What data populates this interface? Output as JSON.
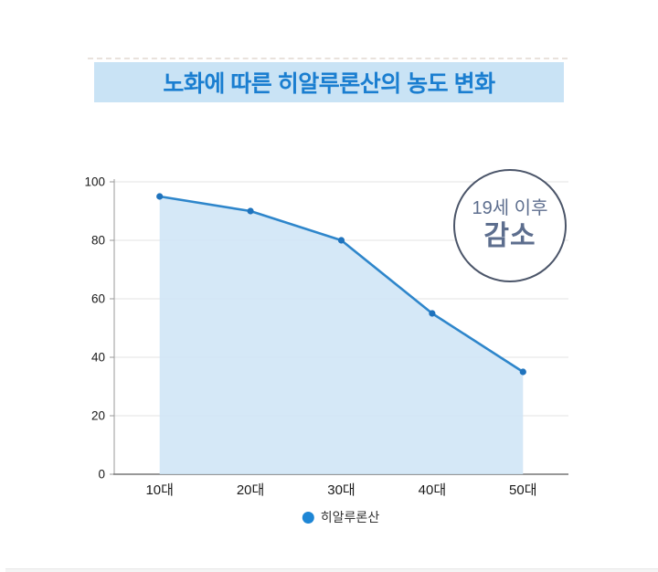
{
  "banner": {
    "title": "노화에 따른 히알루론산의 농도 변화"
  },
  "annotation": {
    "line1": "19세 이후",
    "line2": "감소"
  },
  "legend": {
    "label": "히알루론산"
  },
  "colors": {
    "accent_blue": "#1a7ed0",
    "banner_bg": "#c9e3f5",
    "line": "#2e86cb",
    "marker": "#1f73bd",
    "area_fill": "#cfe5f6",
    "legend_dot": "#1e86d5",
    "badge_border": "#4b5569",
    "badge_text": "#5d6e8e",
    "gridline": "#e3e3e3",
    "axis": "#9a9a9a"
  },
  "chart_data": {
    "type": "area",
    "title": "노화에 따른 히알루론산의 농도 변화",
    "categories": [
      "10대",
      "20대",
      "30대",
      "40대",
      "50대"
    ],
    "series": [
      {
        "name": "히알루론산",
        "values": [
          95,
          90,
          80,
          55,
          35
        ]
      }
    ],
    "xlabel": "",
    "ylabel": "",
    "ylim": [
      0,
      100
    ],
    "yticks": [
      0,
      20,
      40,
      60,
      80,
      100
    ],
    "grid": true,
    "legend_position": "bottom",
    "annotation": "19세 이후 감소"
  }
}
